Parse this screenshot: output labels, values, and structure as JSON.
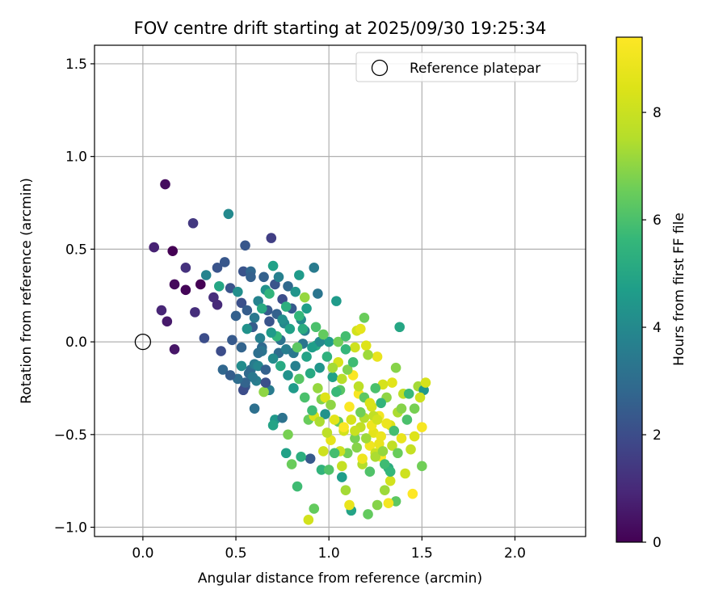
{
  "chart_data": {
    "type": "scatter",
    "title": "FOV centre drift starting at 2025/09/30 19:25:34",
    "xlabel": "Angular distance from reference (arcmin)",
    "ylabel": "Rotation from reference (arcmin)",
    "xlim": [
      -0.26,
      2.38
    ],
    "ylim": [
      -1.05,
      1.6
    ],
    "xticks": [
      0.0,
      0.5,
      1.0,
      1.5,
      2.0
    ],
    "xtick_labels": [
      "0.0",
      "0.5",
      "1.0",
      "1.5",
      "2.0"
    ],
    "yticks": [
      -1.0,
      -0.5,
      0.0,
      0.5,
      1.0,
      1.5
    ],
    "ytick_labels": [
      "−1.0",
      "−0.5",
      "0.0",
      "0.5",
      "1.0",
      "1.5"
    ],
    "grid": true,
    "legend": {
      "location": "top-right",
      "entries": [
        "Reference platepar"
      ]
    },
    "reference_point": {
      "x": 0.0,
      "y": 0.0,
      "label": "Reference platepar"
    },
    "colorbar": {
      "label": "Hours from first FF file",
      "colormap": "viridis",
      "range": [
        0,
        9.4
      ],
      "ticks": [
        0,
        2,
        4,
        6,
        8
      ],
      "tick_labels": [
        "0",
        "2",
        "4",
        "6",
        "8"
      ]
    },
    "points": [
      [
        0.12,
        0.85,
        0.3
      ],
      [
        0.06,
        0.51,
        0.8
      ],
      [
        0.16,
        0.49,
        0.0
      ],
      [
        0.1,
        0.17,
        0.9
      ],
      [
        0.13,
        0.11,
        0.6
      ],
      [
        0.17,
        0.31,
        0.2
      ],
      [
        0.23,
        0.28,
        0.1
      ],
      [
        0.27,
        0.64,
        1.4
      ],
      [
        0.31,
        0.31,
        0.0
      ],
      [
        0.17,
        -0.04,
        0.5
      ],
      [
        0.23,
        0.4,
        1.2
      ],
      [
        0.28,
        0.16,
        1.1
      ],
      [
        0.33,
        0.02,
        2.0
      ],
      [
        0.38,
        0.24,
        1.1
      ],
      [
        0.4,
        0.2,
        1.0
      ],
      [
        0.4,
        0.4,
        2.2
      ],
      [
        0.44,
        0.43,
        2.3
      ],
      [
        0.46,
        0.69,
        4.0
      ],
      [
        0.34,
        0.36,
        3.8
      ],
      [
        0.41,
        0.3,
        5.0
      ],
      [
        0.47,
        0.29,
        2.2
      ],
      [
        0.5,
        0.14,
        2.6
      ],
      [
        0.48,
        0.01,
        2.4
      ],
      [
        0.42,
        -0.05,
        2.0
      ],
      [
        0.43,
        -0.15,
        2.8
      ],
      [
        0.53,
        0.21,
        2.1
      ],
      [
        0.54,
        0.38,
        2.2
      ],
      [
        0.55,
        0.52,
        2.3
      ],
      [
        0.51,
        0.27,
        4.2
      ],
      [
        0.56,
        0.17,
        2.5
      ],
      [
        0.53,
        -0.03,
        2.7
      ],
      [
        0.55,
        -0.24,
        2.4
      ],
      [
        0.58,
        0.38,
        2.8
      ],
      [
        0.58,
        0.35,
        2.6
      ],
      [
        0.58,
        -0.15,
        3.0
      ],
      [
        0.59,
        0.08,
        2.5
      ],
      [
        0.6,
        -0.12,
        3.5
      ],
      [
        0.62,
        0.22,
        3.8
      ],
      [
        0.63,
        0.02,
        3.7
      ],
      [
        0.64,
        -0.03,
        2.9
      ],
      [
        0.65,
        0.35,
        2.6
      ],
      [
        0.66,
        0.28,
        4.3
      ],
      [
        0.67,
        0.17,
        2.4
      ],
      [
        0.68,
        0.11,
        2.2
      ],
      [
        0.69,
        0.56,
        1.6
      ],
      [
        0.7,
        0.41,
        4.8
      ],
      [
        0.71,
        0.31,
        2.2
      ],
      [
        0.72,
        0.15,
        2.6
      ],
      [
        0.73,
        -0.06,
        3.0
      ],
      [
        0.74,
        0.01,
        3.2
      ],
      [
        0.75,
        0.23,
        2.0
      ],
      [
        0.76,
        0.1,
        3.9
      ],
      [
        0.77,
        -0.04,
        3.6
      ],
      [
        0.78,
        0.3,
        2.9
      ],
      [
        0.8,
        0.18,
        2.4
      ],
      [
        0.81,
        -0.06,
        3.4
      ],
      [
        0.82,
        -0.13,
        3.7
      ],
      [
        0.84,
        0.36,
        4.6
      ],
      [
        0.85,
        0.12,
        4.0
      ],
      [
        0.86,
        -0.01,
        3.3
      ],
      [
        0.87,
        0.24,
        7.1
      ],
      [
        0.88,
        -0.08,
        4.9
      ],
      [
        0.9,
        -0.63,
        2.4
      ],
      [
        0.92,
        0.4,
        3.5
      ],
      [
        0.93,
        -0.02,
        5.2
      ],
      [
        0.94,
        0.26,
        3.3
      ],
      [
        0.95,
        -0.14,
        4.4
      ],
      [
        0.96,
        -0.31,
        6.8
      ],
      [
        0.98,
        -0.39,
        4.3
      ],
      [
        1.0,
        0.0,
        4.6
      ],
      [
        1.02,
        -0.19,
        4.8
      ],
      [
        1.04,
        0.22,
        4.6
      ],
      [
        1.05,
        -0.43,
        6.4
      ],
      [
        1.06,
        -0.26,
        6.2
      ],
      [
        1.07,
        -0.73,
        4.7
      ],
      [
        1.08,
        -0.48,
        8.2
      ],
      [
        1.1,
        -0.6,
        6.6
      ],
      [
        1.12,
        -0.91,
        4.9
      ],
      [
        1.13,
        -0.18,
        9.3
      ],
      [
        1.14,
        -0.52,
        6.7
      ],
      [
        1.15,
        0.06,
        8.2
      ],
      [
        1.16,
        -0.28,
        9.2
      ],
      [
        1.17,
        -0.46,
        7.8
      ],
      [
        1.18,
        -0.66,
        7.5
      ],
      [
        1.19,
        0.13,
        6.5
      ],
      [
        1.2,
        -0.02,
        8.5
      ],
      [
        1.21,
        -0.93,
        6.4
      ],
      [
        1.22,
        -0.56,
        9.0
      ],
      [
        1.23,
        -0.35,
        8.3
      ],
      [
        1.24,
        -0.49,
        8.7
      ],
      [
        1.25,
        -0.6,
        8.0
      ],
      [
        1.26,
        -0.88,
        6.9
      ],
      [
        1.27,
        -0.4,
        9.1
      ],
      [
        1.28,
        -0.62,
        9.3
      ],
      [
        1.3,
        -0.8,
        7.2
      ],
      [
        1.31,
        -0.3,
        7.0
      ],
      [
        1.32,
        -0.68,
        5.2
      ],
      [
        1.33,
        -0.45,
        8.4
      ],
      [
        1.34,
        -0.22,
        8.6
      ],
      [
        1.36,
        -0.14,
        6.9
      ],
      [
        1.37,
        -0.38,
        7.4
      ],
      [
        1.38,
        0.08,
        5.0
      ],
      [
        1.39,
        -0.52,
        8.8
      ],
      [
        1.4,
        -0.28,
        7.7
      ],
      [
        1.41,
        -0.71,
        8.1
      ],
      [
        1.42,
        -0.42,
        6.0
      ],
      [
        1.44,
        -0.58,
        7.9
      ],
      [
        1.45,
        -0.82,
        9.4
      ],
      [
        1.46,
        -0.51,
        8.5
      ],
      [
        1.48,
        -0.24,
        7.3
      ],
      [
        1.5,
        -0.67,
        6.6
      ],
      [
        1.5,
        -0.46,
        9.2
      ],
      [
        1.51,
        -0.26,
        4.5
      ],
      [
        1.52,
        -0.22,
        8.3
      ],
      [
        0.89,
        -0.96,
        8.2
      ],
      [
        0.92,
        -0.9,
        6.4
      ],
      [
        0.96,
        -0.69,
        5.5
      ],
      [
        1.0,
        -0.69,
        6.1
      ],
      [
        1.09,
        -0.8,
        7.3
      ],
      [
        1.11,
        -0.88,
        8.8
      ],
      [
        0.83,
        -0.78,
        5.8
      ],
      [
        0.8,
        -0.66,
        6.5
      ],
      [
        0.77,
        -0.6,
        4.8
      ],
      [
        0.78,
        -0.5,
        6.7
      ],
      [
        0.85,
        -0.62,
        5.3
      ],
      [
        0.71,
        -0.42,
        4.5
      ],
      [
        0.75,
        -0.41,
        3.2
      ],
      [
        0.7,
        -0.45,
        4.9
      ],
      [
        0.68,
        -0.26,
        3.5
      ],
      [
        0.65,
        -0.27,
        7.0
      ],
      [
        0.6,
        -0.36,
        3.1
      ],
      [
        0.57,
        -0.17,
        2.9
      ],
      [
        0.61,
        -0.21,
        3.6
      ],
      [
        0.66,
        -0.22,
        2.1
      ],
      [
        0.54,
        -0.26,
        2.0
      ],
      [
        0.89,
        -0.42,
        6.5
      ],
      [
        0.92,
        -0.4,
        8.4
      ],
      [
        0.97,
        -0.59,
        8.1
      ],
      [
        1.01,
        -0.53,
        8.7
      ],
      [
        1.03,
        -0.42,
        8.6
      ],
      [
        1.06,
        -0.59,
        8.0
      ],
      [
        1.08,
        -0.46,
        9.3
      ],
      [
        1.12,
        -0.42,
        8.3
      ],
      [
        1.15,
        -0.57,
        6.9
      ],
      [
        1.19,
        -0.41,
        7.5
      ],
      [
        1.24,
        -0.4,
        7.8
      ],
      [
        1.28,
        -0.51,
        8.9
      ],
      [
        1.34,
        -0.56,
        7.8
      ],
      [
        1.36,
        -0.86,
        6.3
      ],
      [
        1.32,
        -0.87,
        9.1
      ],
      [
        1.33,
        -0.75,
        8.2
      ],
      [
        1.29,
        -0.23,
        8.3
      ],
      [
        1.26,
        -0.08,
        8.8
      ],
      [
        1.21,
        -0.07,
        7.2
      ],
      [
        1.17,
        0.07,
        8.7
      ],
      [
        1.14,
        -0.03,
        8.1
      ],
      [
        1.09,
        -0.04,
        5.6
      ],
      [
        1.05,
        -0.11,
        8.3
      ],
      [
        1.02,
        -0.14,
        7.3
      ],
      [
        0.99,
        -0.08,
        5.4
      ],
      [
        0.95,
        0.0,
        4.0
      ],
      [
        0.91,
        -0.03,
        4.7
      ],
      [
        0.87,
        0.06,
        3.7
      ],
      [
        0.83,
        -0.03,
        6.3
      ],
      [
        0.79,
        0.07,
        4.8
      ],
      [
        0.75,
        0.12,
        4.2
      ],
      [
        0.72,
        0.03,
        5.6
      ],
      [
        0.69,
        0.05,
        4.6
      ],
      [
        0.64,
        -0.05,
        3.3
      ],
      [
        0.62,
        -0.13,
        3.9
      ],
      [
        0.59,
        -0.19,
        3.4
      ],
      [
        0.55,
        -0.22,
        2.7
      ],
      [
        0.53,
        -0.13,
        4.1
      ],
      [
        0.51,
        -0.2,
        3.0
      ],
      [
        0.47,
        -0.18,
        2.5
      ],
      [
        0.56,
        0.07,
        4.3
      ],
      [
        0.6,
        0.13,
        3.4
      ],
      [
        0.64,
        0.18,
        5.1
      ],
      [
        0.68,
        0.26,
        5.5
      ],
      [
        0.73,
        0.35,
        3.7
      ],
      [
        0.77,
        0.19,
        5.3
      ],
      [
        0.82,
        0.27,
        4.4
      ],
      [
        0.86,
        0.07,
        5.2
      ],
      [
        0.9,
        -0.17,
        5.1
      ],
      [
        0.94,
        -0.25,
        7.1
      ],
      [
        0.98,
        -0.3,
        8.5
      ],
      [
        1.01,
        -0.34,
        7.0
      ],
      [
        1.04,
        -0.27,
        5.7
      ],
      [
        1.07,
        -0.2,
        7.6
      ],
      [
        1.1,
        -0.15,
        6.8
      ],
      [
        1.13,
        -0.11,
        5.8
      ],
      [
        1.16,
        -0.24,
        7.7
      ],
      [
        1.19,
        -0.3,
        6.3
      ],
      [
        1.22,
        -0.33,
        8.4
      ],
      [
        1.25,
        -0.25,
        6.0
      ],
      [
        1.28,
        -0.33,
        5.5
      ],
      [
        1.31,
        -0.44,
        8.9
      ],
      [
        1.35,
        -0.48,
        5.9
      ],
      [
        1.39,
        -0.36,
        6.9
      ],
      [
        1.43,
        -0.28,
        5.7
      ],
      [
        1.46,
        -0.36,
        6.7
      ],
      [
        1.49,
        -0.3,
        8.1
      ],
      [
        1.18,
        -0.63,
        9.0
      ],
      [
        1.22,
        -0.7,
        6.1
      ],
      [
        1.25,
        -0.62,
        7.4
      ],
      [
        1.27,
        -0.55,
        8.8
      ],
      [
        1.3,
        -0.66,
        5.8
      ],
      [
        1.07,
        -0.67,
        7.9
      ],
      [
        1.03,
        -0.6,
        5.9
      ],
      [
        0.99,
        -0.49,
        7.7
      ],
      [
        0.95,
        -0.43,
        7.4
      ],
      [
        0.91,
        -0.37,
        5.8
      ],
      [
        0.87,
        -0.3,
        6.0
      ],
      [
        0.84,
        -0.2,
        6.2
      ],
      [
        0.81,
        -0.25,
        4.6
      ],
      [
        0.78,
        -0.18,
        4.3
      ],
      [
        0.74,
        -0.13,
        5.1
      ],
      [
        0.7,
        -0.09,
        4.1
      ],
      [
        0.66,
        -0.15,
        2.6
      ],
      [
        0.62,
        -0.06,
        3.1
      ],
      [
        1.11,
        -0.35,
        9.3
      ],
      [
        1.14,
        -0.48,
        8.0
      ],
      [
        1.17,
        -0.38,
        6.6
      ],
      [
        1.2,
        -0.52,
        7.2
      ],
      [
        1.23,
        -0.45,
        9.0
      ],
      [
        1.26,
        -0.42,
        8.2
      ],
      [
        1.29,
        -0.59,
        7.1
      ],
      [
        1.33,
        -0.7,
        5.6
      ],
      [
        1.37,
        -0.6,
        6.5
      ],
      [
        1.05,
        0.0,
        6.6
      ],
      [
        1.09,
        0.03,
        5.9
      ],
      [
        0.97,
        0.04,
        6.4
      ],
      [
        0.93,
        0.08,
        6.0
      ],
      [
        0.88,
        0.18,
        4.7
      ],
      [
        0.84,
        0.14,
        5.6
      ]
    ]
  }
}
